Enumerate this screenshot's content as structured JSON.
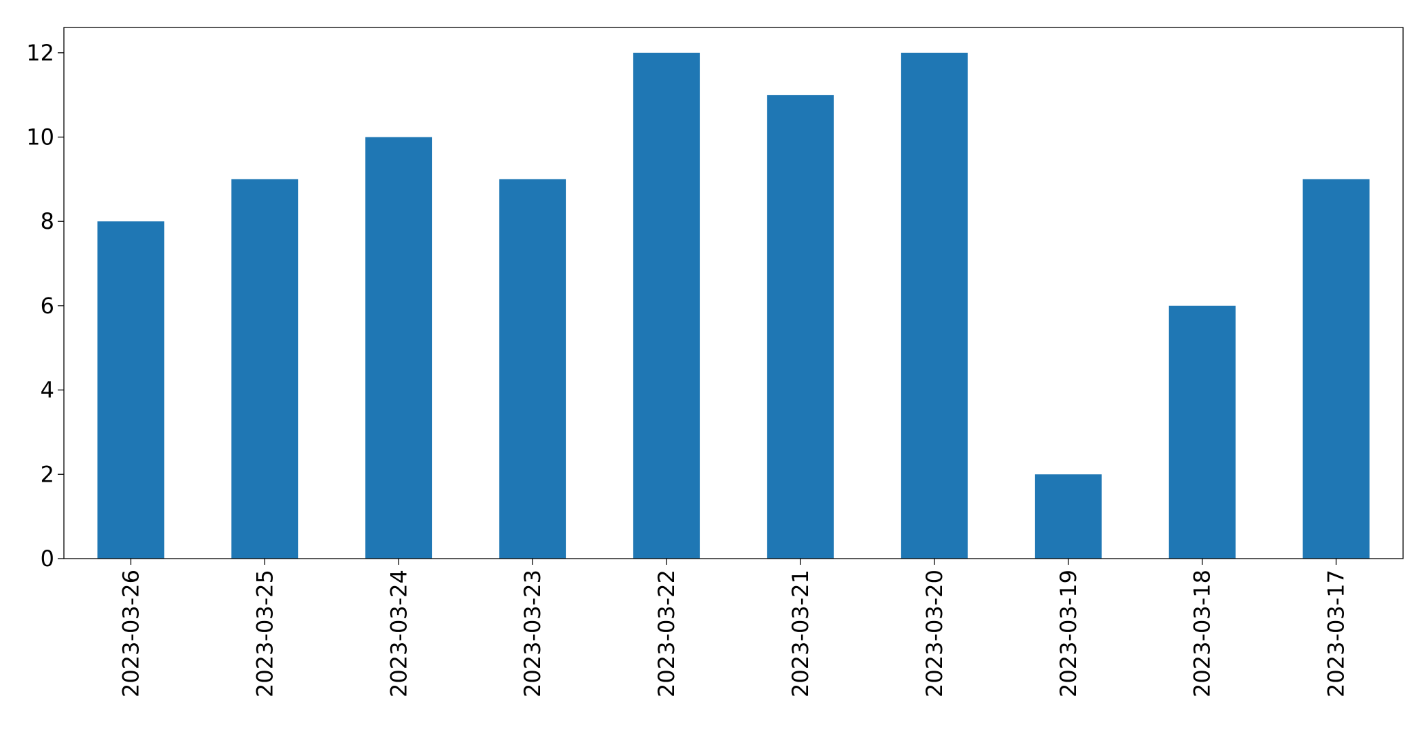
{
  "chart_data": {
    "type": "bar",
    "categories": [
      "2023-03-26",
      "2023-03-25",
      "2023-03-24",
      "2023-03-23",
      "2023-03-22",
      "2023-03-21",
      "2023-03-20",
      "2023-03-19",
      "2023-03-18",
      "2023-03-17"
    ],
    "values": [
      8,
      9,
      10,
      9,
      12,
      11,
      12,
      2,
      6,
      9
    ],
    "color": "#1f77b4",
    "ylim": [
      0,
      12.6
    ],
    "yticks": [
      0,
      2,
      4,
      6,
      8,
      10,
      12
    ],
    "grid": false
  }
}
